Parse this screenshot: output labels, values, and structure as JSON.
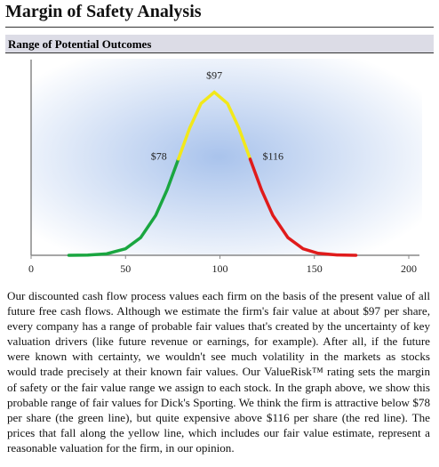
{
  "header": {
    "title": "Margin of Safety Analysis",
    "section": "Range of Potential Outcomes"
  },
  "chart_data": {
    "type": "line",
    "x": [
      20,
      30,
      40,
      50,
      58,
      66,
      72,
      78,
      84,
      90,
      97,
      104,
      110,
      116,
      122,
      128,
      136,
      144,
      152,
      162,
      172
    ],
    "series": [
      {
        "color": "#1aa640",
        "values": [
          0.0002,
          0.0014,
          0.009,
          0.04,
          0.108,
          0.245,
          0.401,
          0.59,
          null,
          null,
          null,
          null,
          null,
          null,
          null,
          null,
          null,
          null,
          null,
          null,
          null
        ]
      },
      {
        "color": "#f2e81a",
        "values": [
          null,
          null,
          null,
          null,
          null,
          null,
          null,
          0.59,
          0.781,
          0.931,
          1,
          0.931,
          0.781,
          0.59,
          null,
          null,
          null,
          null,
          null,
          null,
          null
        ]
      },
      {
        "color": "#e01b1b",
        "values": [
          null,
          null,
          null,
          null,
          null,
          null,
          null,
          null,
          null,
          null,
          null,
          null,
          null,
          0.59,
          0.401,
          0.245,
          0.108,
          0.04,
          0.012,
          0.0021,
          0.0003
        ]
      }
    ],
    "annotations": [
      {
        "text": "$78",
        "x": 78
      },
      {
        "text": "$97",
        "x": 97
      },
      {
        "text": "$116",
        "x": 116
      }
    ],
    "xlim": [
      0,
      200
    ],
    "xticks": [
      0,
      50,
      100,
      150,
      200
    ],
    "ylim": [
      0,
      1.2
    ]
  },
  "body": {
    "text": "Our discounted cash flow process values each firm on the basis of the present value of all future free cash flows. Although we estimate the firm's fair value at about $97 per share, every company has a range of probable fair values that's created by the uncertainty of key valuation drivers (like future revenue or earnings, for example). After all, if the future were known with certainty, we wouldn't see much volatility in the markets as stocks would trade precisely at their known fair values. Our ValueRisk™ rating sets the margin of safety or the fair value range we assign to each stock. In the graph above, we show this probable range of fair values for Dick's Sporting. We think the firm is attractive below $78 per share (the green line), but quite expensive above $116 per share (the red line). The prices that fall along the yellow line, which includes our fair value estimate, represent a reasonable valuation for the firm, in our opinion."
  }
}
